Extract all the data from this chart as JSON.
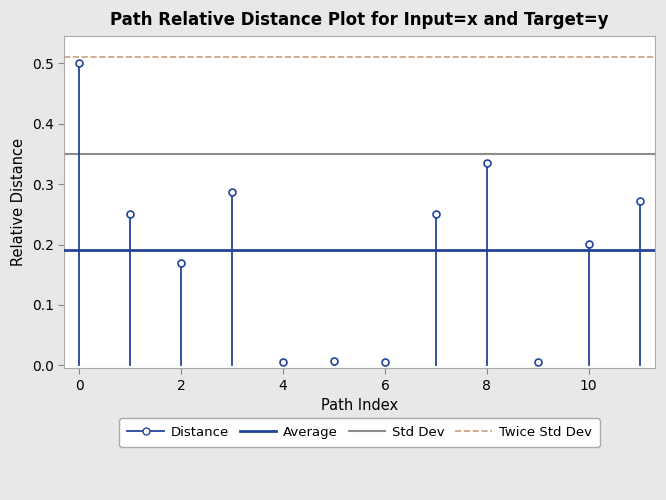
{
  "title": "Path Relative Distance Plot for Input=x and Target=y",
  "xlabel": "Path Index",
  "ylabel": "Relative Distance",
  "x_values": [
    0,
    1,
    2,
    3,
    4,
    5,
    6,
    7,
    8,
    9,
    10,
    11
  ],
  "y_values": [
    0.5,
    0.25,
    0.17,
    0.287,
    0.005,
    0.007,
    0.005,
    0.25,
    0.335,
    0.005,
    0.201,
    0.272
  ],
  "average": 0.191,
  "std_dev": 0.35,
  "twice_std_dev": 0.51,
  "line_color": "#22449a",
  "avg_color": "#22449a",
  "std_color": "#8c8c8c",
  "twice_std_color": "#c8a080",
  "fig_bg_color": "#e8e8e8",
  "plot_bg_color": "#ffffff",
  "xlim": [
    -0.3,
    11.3
  ],
  "ylim": [
    -0.005,
    0.545
  ],
  "xticks": [
    0,
    2,
    4,
    6,
    8,
    10
  ],
  "yticks": [
    0.0,
    0.1,
    0.2,
    0.3,
    0.4,
    0.5
  ],
  "title_fontsize": 12,
  "label_fontsize": 10.5,
  "tick_fontsize": 10
}
